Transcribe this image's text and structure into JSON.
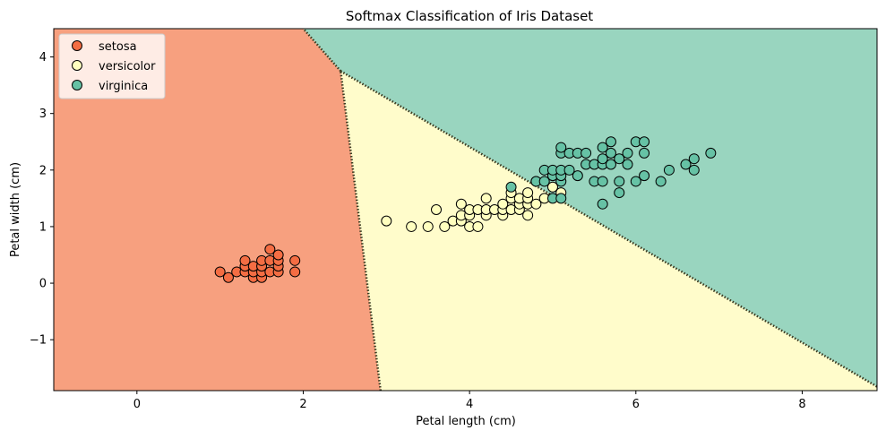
{
  "chart_data": {
    "type": "scatter",
    "title": "Softmax Classification of Iris Dataset",
    "xlabel": "Petal length (cm)",
    "ylabel": "Petal width (cm)",
    "xlim": [
      -1.0,
      8.9
    ],
    "ylim": [
      -1.9,
      4.5
    ],
    "xticks": [
      0,
      2,
      4,
      6,
      8
    ],
    "yticks": [
      -1,
      0,
      1,
      2,
      3,
      4
    ],
    "ytick_labels": [
      "−1",
      "0",
      "1",
      "2",
      "3",
      "4"
    ],
    "grid": false,
    "legend_position": "top-left",
    "regions": [
      {
        "class": "setosa",
        "color": "#f7a07f"
      },
      {
        "class": "versicolor",
        "color": "#fffccb"
      },
      {
        "class": "virginica",
        "color": "#99d5bf"
      }
    ],
    "boundaries": [
      {
        "between": [
          "setosa",
          "versicolor"
        ],
        "points": [
          [
            2.93,
            -1.9
          ],
          [
            2.45,
            3.75
          ]
        ]
      },
      {
        "between": [
          "setosa",
          "virginica"
        ],
        "points": [
          [
            2.45,
            3.75
          ],
          [
            2.0,
            4.5
          ]
        ]
      },
      {
        "between": [
          "versicolor",
          "virginica"
        ],
        "points": [
          [
            2.45,
            3.75
          ],
          [
            8.9,
            -1.83
          ]
        ]
      }
    ],
    "boundary_color": "#3a3a1f",
    "series": [
      {
        "name": "setosa",
        "color": "#f46d43",
        "points": [
          [
            1.0,
            0.2
          ],
          [
            1.1,
            0.1
          ],
          [
            1.2,
            0.2
          ],
          [
            1.3,
            0.2
          ],
          [
            1.3,
            0.3
          ],
          [
            1.3,
            0.4
          ],
          [
            1.4,
            0.1
          ],
          [
            1.4,
            0.2
          ],
          [
            1.4,
            0.3
          ],
          [
            1.5,
            0.1
          ],
          [
            1.5,
            0.2
          ],
          [
            1.5,
            0.3
          ],
          [
            1.5,
            0.4
          ],
          [
            1.6,
            0.2
          ],
          [
            1.6,
            0.4
          ],
          [
            1.6,
            0.6
          ],
          [
            1.7,
            0.2
          ],
          [
            1.7,
            0.3
          ],
          [
            1.7,
            0.4
          ],
          [
            1.7,
            0.5
          ],
          [
            1.9,
            0.2
          ],
          [
            1.9,
            0.4
          ]
        ]
      },
      {
        "name": "versicolor",
        "color": "#ffffbf",
        "points": [
          [
            3.0,
            1.1
          ],
          [
            3.3,
            1.0
          ],
          [
            3.5,
            1.0
          ],
          [
            3.6,
            1.3
          ],
          [
            3.7,
            1.0
          ],
          [
            3.8,
            1.1
          ],
          [
            3.9,
            1.1
          ],
          [
            3.9,
            1.2
          ],
          [
            3.9,
            1.4
          ],
          [
            4.0,
            1.0
          ],
          [
            4.0,
            1.2
          ],
          [
            4.0,
            1.3
          ],
          [
            4.1,
            1.0
          ],
          [
            4.1,
            1.3
          ],
          [
            4.2,
            1.2
          ],
          [
            4.2,
            1.3
          ],
          [
            4.2,
            1.5
          ],
          [
            4.3,
            1.3
          ],
          [
            4.4,
            1.2
          ],
          [
            4.4,
            1.3
          ],
          [
            4.4,
            1.4
          ],
          [
            4.5,
            1.3
          ],
          [
            4.5,
            1.5
          ],
          [
            4.5,
            1.6
          ],
          [
            4.6,
            1.3
          ],
          [
            4.6,
            1.4
          ],
          [
            4.6,
            1.5
          ],
          [
            4.7,
            1.2
          ],
          [
            4.7,
            1.4
          ],
          [
            4.7,
            1.5
          ],
          [
            4.7,
            1.6
          ],
          [
            4.8,
            1.4
          ],
          [
            4.8,
            1.8
          ],
          [
            4.9,
            1.5
          ],
          [
            5.0,
            1.7
          ],
          [
            5.1,
            1.6
          ]
        ]
      },
      {
        "name": "virginica",
        "color": "#66c2a5",
        "points": [
          [
            4.5,
            1.7
          ],
          [
            4.8,
            1.8
          ],
          [
            4.9,
            1.8
          ],
          [
            4.9,
            2.0
          ],
          [
            5.0,
            1.5
          ],
          [
            5.0,
            1.9
          ],
          [
            5.0,
            2.0
          ],
          [
            5.1,
            1.5
          ],
          [
            5.1,
            1.8
          ],
          [
            5.1,
            1.9
          ],
          [
            5.1,
            2.0
          ],
          [
            5.1,
            2.3
          ],
          [
            5.1,
            2.4
          ],
          [
            5.2,
            2.0
          ],
          [
            5.2,
            2.3
          ],
          [
            5.3,
            1.9
          ],
          [
            5.3,
            2.3
          ],
          [
            5.4,
            2.1
          ],
          [
            5.4,
            2.3
          ],
          [
            5.5,
            1.8
          ],
          [
            5.5,
            2.1
          ],
          [
            5.6,
            1.4
          ],
          [
            5.6,
            1.8
          ],
          [
            5.6,
            2.1
          ],
          [
            5.6,
            2.2
          ],
          [
            5.6,
            2.4
          ],
          [
            5.7,
            2.1
          ],
          [
            5.7,
            2.3
          ],
          [
            5.7,
            2.5
          ],
          [
            5.8,
            1.6
          ],
          [
            5.8,
            1.8
          ],
          [
            5.8,
            2.2
          ],
          [
            5.9,
            2.1
          ],
          [
            5.9,
            2.3
          ],
          [
            6.0,
            1.8
          ],
          [
            6.0,
            2.5
          ],
          [
            6.1,
            1.9
          ],
          [
            6.1,
            2.3
          ],
          [
            6.1,
            2.5
          ],
          [
            6.3,
            1.8
          ],
          [
            6.4,
            2.0
          ],
          [
            6.6,
            2.1
          ],
          [
            6.7,
            2.0
          ],
          [
            6.7,
            2.2
          ],
          [
            6.9,
            2.3
          ]
        ]
      }
    ]
  }
}
